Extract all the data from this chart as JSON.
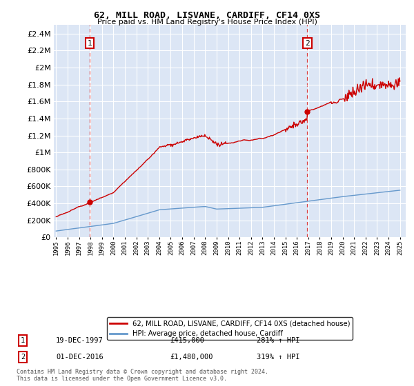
{
  "title": "62, MILL ROAD, LISVANE, CARDIFF, CF14 0XS",
  "subtitle": "Price paid vs. HM Land Registry's House Price Index (HPI)",
  "background_color": "#dce6f5",
  "legend_label_red": "62, MILL ROAD, LISVANE, CARDIFF, CF14 0XS (detached house)",
  "legend_label_blue": "HPI: Average price, detached house, Cardiff",
  "annotation1_date": "19-DEC-1997",
  "annotation1_price": "£415,000",
  "annotation1_hpi": "281% ↑ HPI",
  "annotation2_date": "01-DEC-2016",
  "annotation2_price": "£1,480,000",
  "annotation2_hpi": "319% ↑ HPI",
  "footer": "Contains HM Land Registry data © Crown copyright and database right 2024.\nThis data is licensed under the Open Government Licence v3.0.",
  "sale1_year": 1997.95,
  "sale1_price": 415000,
  "sale2_year": 2016.92,
  "sale2_price": 1480000,
  "ylim": [
    0,
    2500000
  ],
  "xlim_start": 1994.8,
  "xlim_end": 2025.5
}
